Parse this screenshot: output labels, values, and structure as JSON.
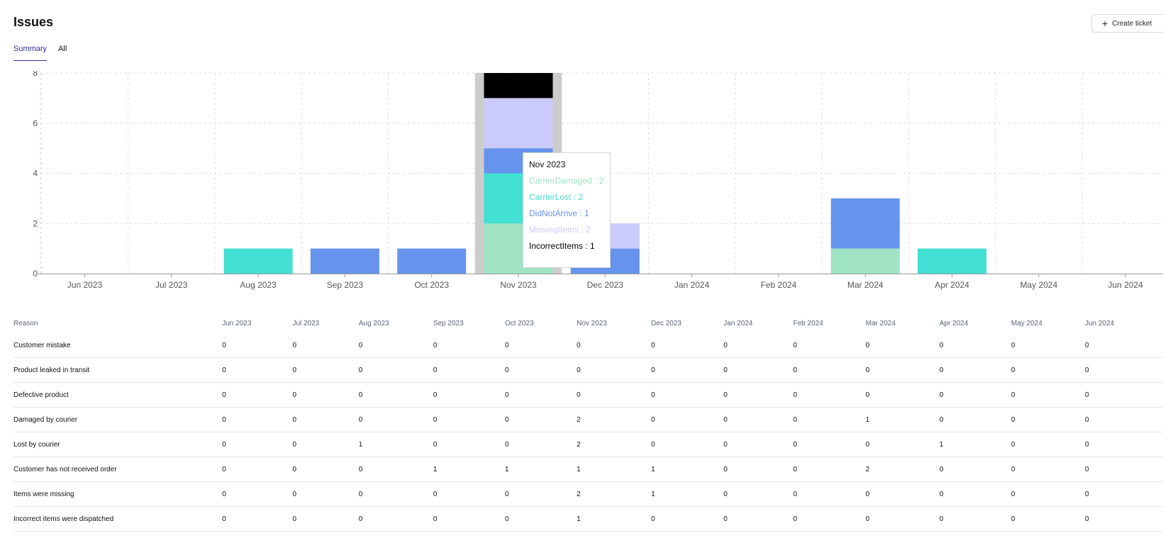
{
  "page": {
    "title": "Issues"
  },
  "toolbar": {
    "create_label": "Create ticket",
    "create_icon": "plus-icon"
  },
  "tabs": [
    {
      "label": "Summary",
      "active": true
    },
    {
      "label": "All",
      "active": false
    }
  ],
  "colors": {
    "CarrierDamaged": "#a0e3c4",
    "CarrierLost": "#42e0d2",
    "DidNotArrive": "#6693ec",
    "MissingItems": "#cacbfb",
    "IncorrectItems": "#000000",
    "hover_band": "#cccccc"
  },
  "chart_data": {
    "type": "bar",
    "stacked": true,
    "categories": [
      "Jun 2023",
      "Jul 2023",
      "Aug 2023",
      "Sep 2023",
      "Oct 2023",
      "Nov 2023",
      "Dec 2023",
      "Jan 2024",
      "Feb 2024",
      "Mar 2024",
      "Apr 2024",
      "May 2024",
      "Jun 2024"
    ],
    "series": [
      {
        "name": "CarrierDamaged",
        "values": [
          0,
          0,
          0,
          0,
          0,
          2,
          0,
          0,
          0,
          1,
          0,
          0,
          0
        ]
      },
      {
        "name": "CarrierLost",
        "values": [
          0,
          0,
          1,
          0,
          0,
          2,
          0,
          0,
          0,
          0,
          1,
          0,
          0
        ]
      },
      {
        "name": "DidNotArrive",
        "values": [
          0,
          0,
          0,
          1,
          1,
          1,
          1,
          0,
          0,
          2,
          0,
          0,
          0
        ]
      },
      {
        "name": "MissingItems",
        "values": [
          0,
          0,
          0,
          0,
          0,
          2,
          1,
          0,
          0,
          0,
          0,
          0,
          0
        ]
      },
      {
        "name": "IncorrectItems",
        "values": [
          0,
          0,
          0,
          0,
          0,
          1,
          0,
          0,
          0,
          0,
          0,
          0,
          0
        ]
      }
    ],
    "yticks": [
      0,
      2,
      4,
      6,
      8
    ],
    "ylim": [
      0,
      8
    ],
    "grid": true,
    "highlighted_category": "Nov 2023"
  },
  "tooltip": {
    "title": "Nov 2023",
    "rows": [
      {
        "name": "CarrierDamaged",
        "text": "CarrierDamaged : 2"
      },
      {
        "name": "CarrierLost",
        "text": "CarrierLost : 2"
      },
      {
        "name": "DidNotArrive",
        "text": "DidNotArrive : 1"
      },
      {
        "name": "MissingItems",
        "text": "MissingItems : 2"
      },
      {
        "name": "IncorrectItems",
        "text": "IncorrectItems : 1"
      }
    ]
  },
  "table": {
    "reason_header": "Reason",
    "columns": [
      "Jun 2023",
      "Jul 2023",
      "Aug 2023",
      "Sep 2023",
      "Oct 2023",
      "Nov 2023",
      "Dec 2023",
      "Jan 2024",
      "Feb 2024",
      "Mar 2024",
      "Apr 2024",
      "May 2024",
      "Jun 2024"
    ],
    "rows": [
      {
        "reason": "Customer mistake",
        "values": [
          "0",
          "0",
          "0",
          "0",
          "0",
          "0",
          "0",
          "0",
          "0",
          "0",
          "0",
          "0",
          "0"
        ]
      },
      {
        "reason": "Product leaked in transit",
        "values": [
          "0",
          "0",
          "0",
          "0",
          "0",
          "0",
          "0",
          "0",
          "0",
          "0",
          "0",
          "0",
          "0"
        ]
      },
      {
        "reason": "Defective product",
        "values": [
          "0",
          "0",
          "0",
          "0",
          "0",
          "0",
          "0",
          "0",
          "0",
          "0",
          "0",
          "0",
          "0"
        ]
      },
      {
        "reason": "Damaged by courier",
        "values": [
          "0",
          "0",
          "0",
          "0",
          "0",
          "2",
          "0",
          "0",
          "0",
          "1",
          "0",
          "0",
          "0"
        ]
      },
      {
        "reason": "Lost by courier",
        "values": [
          "0",
          "0",
          "1",
          "0",
          "0",
          "2",
          "0",
          "0",
          "0",
          "0",
          "1",
          "0",
          "0"
        ]
      },
      {
        "reason": "Customer has not received order",
        "values": [
          "0",
          "0",
          "0",
          "1",
          "1",
          "1",
          "1",
          "0",
          "0",
          "2",
          "0",
          "0",
          "0"
        ]
      },
      {
        "reason": "Items were missing",
        "values": [
          "0",
          "0",
          "0",
          "0",
          "0",
          "2",
          "1",
          "0",
          "0",
          "0",
          "0",
          "0",
          "0"
        ]
      },
      {
        "reason": "Incorrect items were dispatched",
        "values": [
          "0",
          "0",
          "0",
          "0",
          "0",
          "1",
          "0",
          "0",
          "0",
          "0",
          "0",
          "0",
          "0"
        ]
      }
    ]
  }
}
